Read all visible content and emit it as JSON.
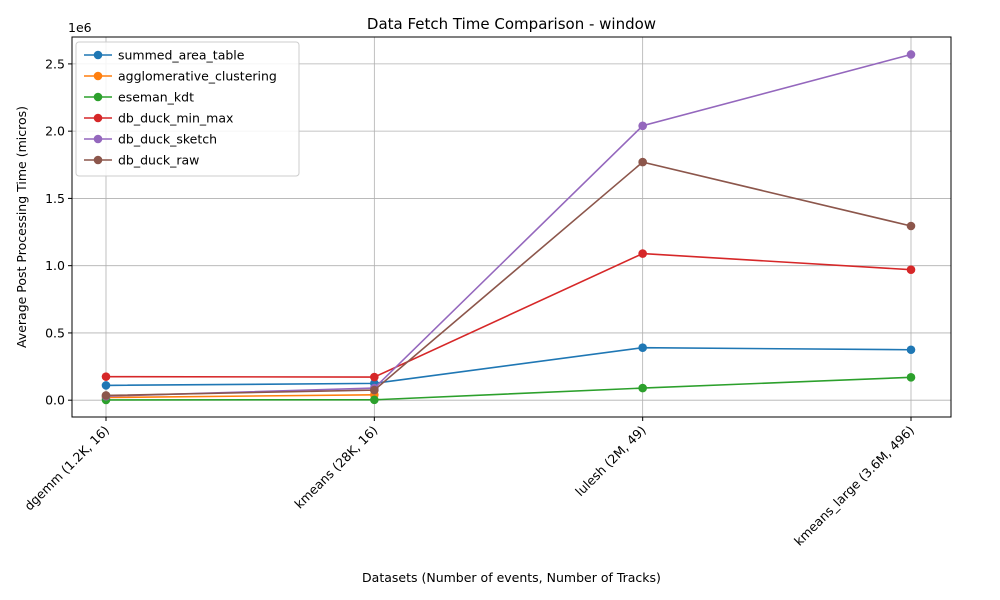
{
  "chart_data": {
    "type": "line",
    "title": "Data Fetch Time Comparison - window",
    "xlabel": "Datasets (Number of events, Number of Tracks)",
    "ylabel": "Average Post Processing Time (micros)",
    "y_offset_label": "1e6",
    "categories": [
      "dgemm (1.2K, 16)",
      "kmeans (28K, 16)",
      "lulesh (2M, 49)",
      "kmeans_large (3.6M, 496)"
    ],
    "ylim": [
      -125000,
      2700000
    ],
    "yticks": [
      0,
      500000,
      1000000,
      1500000,
      2000000,
      2500000
    ],
    "ytick_labels": [
      "0.0",
      "0.5",
      "1.0",
      "1.5",
      "2.0",
      "2.5"
    ],
    "grid": true,
    "legend_position": "top-left",
    "series": [
      {
        "name": "summed_area_table",
        "color": "#1f77b4",
        "values": [
          110000,
          125000,
          390000,
          375000
        ]
      },
      {
        "name": "agglomerative_clustering",
        "color": "#ff7f0e",
        "values": [
          20000,
          40000,
          null,
          null
        ]
      },
      {
        "name": "eseman_kdt",
        "color": "#2ca02c",
        "values": [
          2000,
          3000,
          90000,
          170000
        ]
      },
      {
        "name": "db_duck_min_max",
        "color": "#d62728",
        "values": [
          175000,
          172000,
          1090000,
          970000
        ]
      },
      {
        "name": "db_duck_sketch",
        "color": "#9467bd",
        "values": [
          30000,
          90000,
          2040000,
          2570000
        ]
      },
      {
        "name": "db_duck_raw",
        "color": "#8c564b",
        "values": [
          35000,
          75000,
          1770000,
          1295000
        ]
      }
    ]
  }
}
